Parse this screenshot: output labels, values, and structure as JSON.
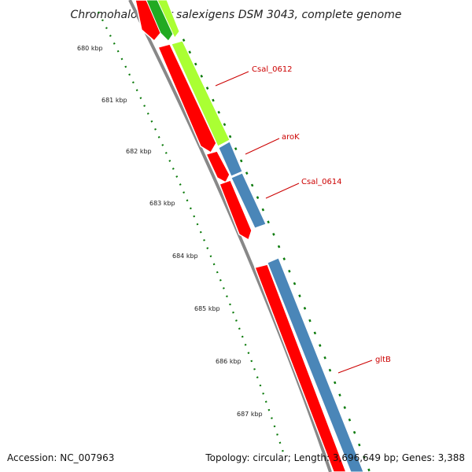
{
  "title": "Chromohalobacter salexigens DSM 3043, complete genome",
  "footer": {
    "accession": "Accession: NC_007963",
    "summary": "Topology: circular; Length: 3,696,649 bp; Genes: 3,388"
  },
  "ticks": [
    "680 kbp",
    "681 kbp",
    "682 kbp",
    "683 kbp",
    "684 kbp",
    "685 kbp",
    "686 kbp",
    "687 kbp"
  ],
  "gene_labels": [
    "Csal_0612",
    "aroK",
    "Csal_0614",
    "gltB"
  ],
  "colors": {
    "cds_red": "#ff0000",
    "gene_green": "#aaff33",
    "gene_darkgreen": "#22aa22",
    "gene_blue": "#4a86b8",
    "backbone": "#888888",
    "tick_green": "#0a7a0a",
    "label_red": "#cc0000"
  }
}
